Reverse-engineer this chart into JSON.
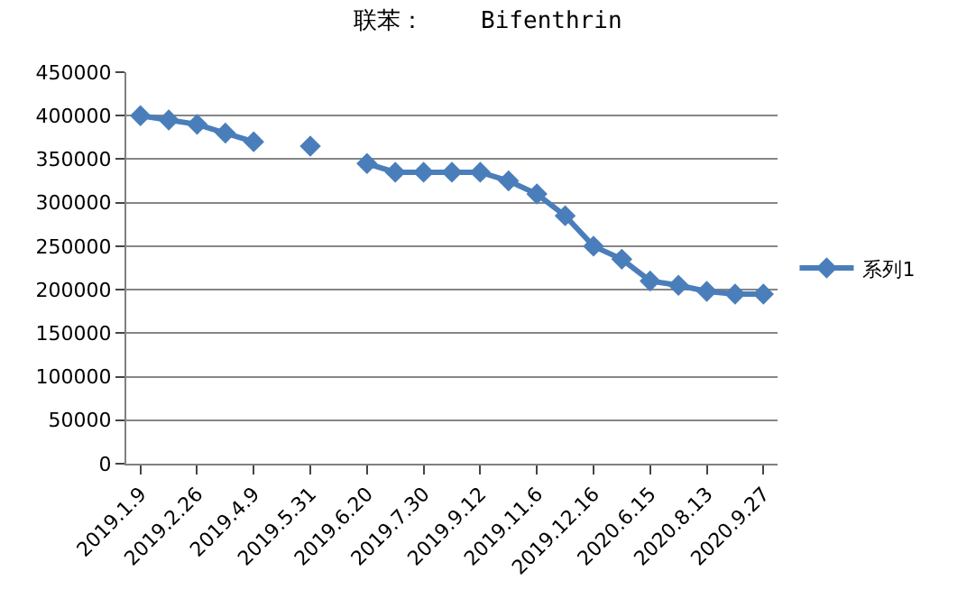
{
  "chart_data": {
    "type": "line",
    "title": "联苯：    Bifenthrin",
    "categories": [
      "2019.1.9",
      null,
      "2019.2.26",
      null,
      "2019.4.9",
      null,
      "2019.5.31",
      null,
      "2019.6.20",
      null,
      "2019.7.30",
      null,
      "2019.9.12",
      null,
      "2019.11.6",
      null,
      "2019.12.16",
      null,
      "2020.6.15",
      null,
      "2020.8.13",
      null,
      "2020.9.27"
    ],
    "series": [
      {
        "name": "系列1",
        "color": "#4a7ebb",
        "values": [
          400000,
          395000,
          390000,
          380000,
          370000,
          null,
          365000,
          null,
          345000,
          335000,
          335000,
          335000,
          335000,
          325000,
          310000,
          285000,
          250000,
          235000,
          210000,
          205000,
          198000,
          195000,
          195000
        ]
      }
    ],
    "ylim": [
      0,
      450000
    ],
    "yticks": [
      0,
      50000,
      100000,
      150000,
      200000,
      250000,
      300000,
      350000,
      400000,
      450000
    ],
    "grid": "y",
    "legend": "right",
    "marker": "diamond",
    "line_style": "solid"
  }
}
